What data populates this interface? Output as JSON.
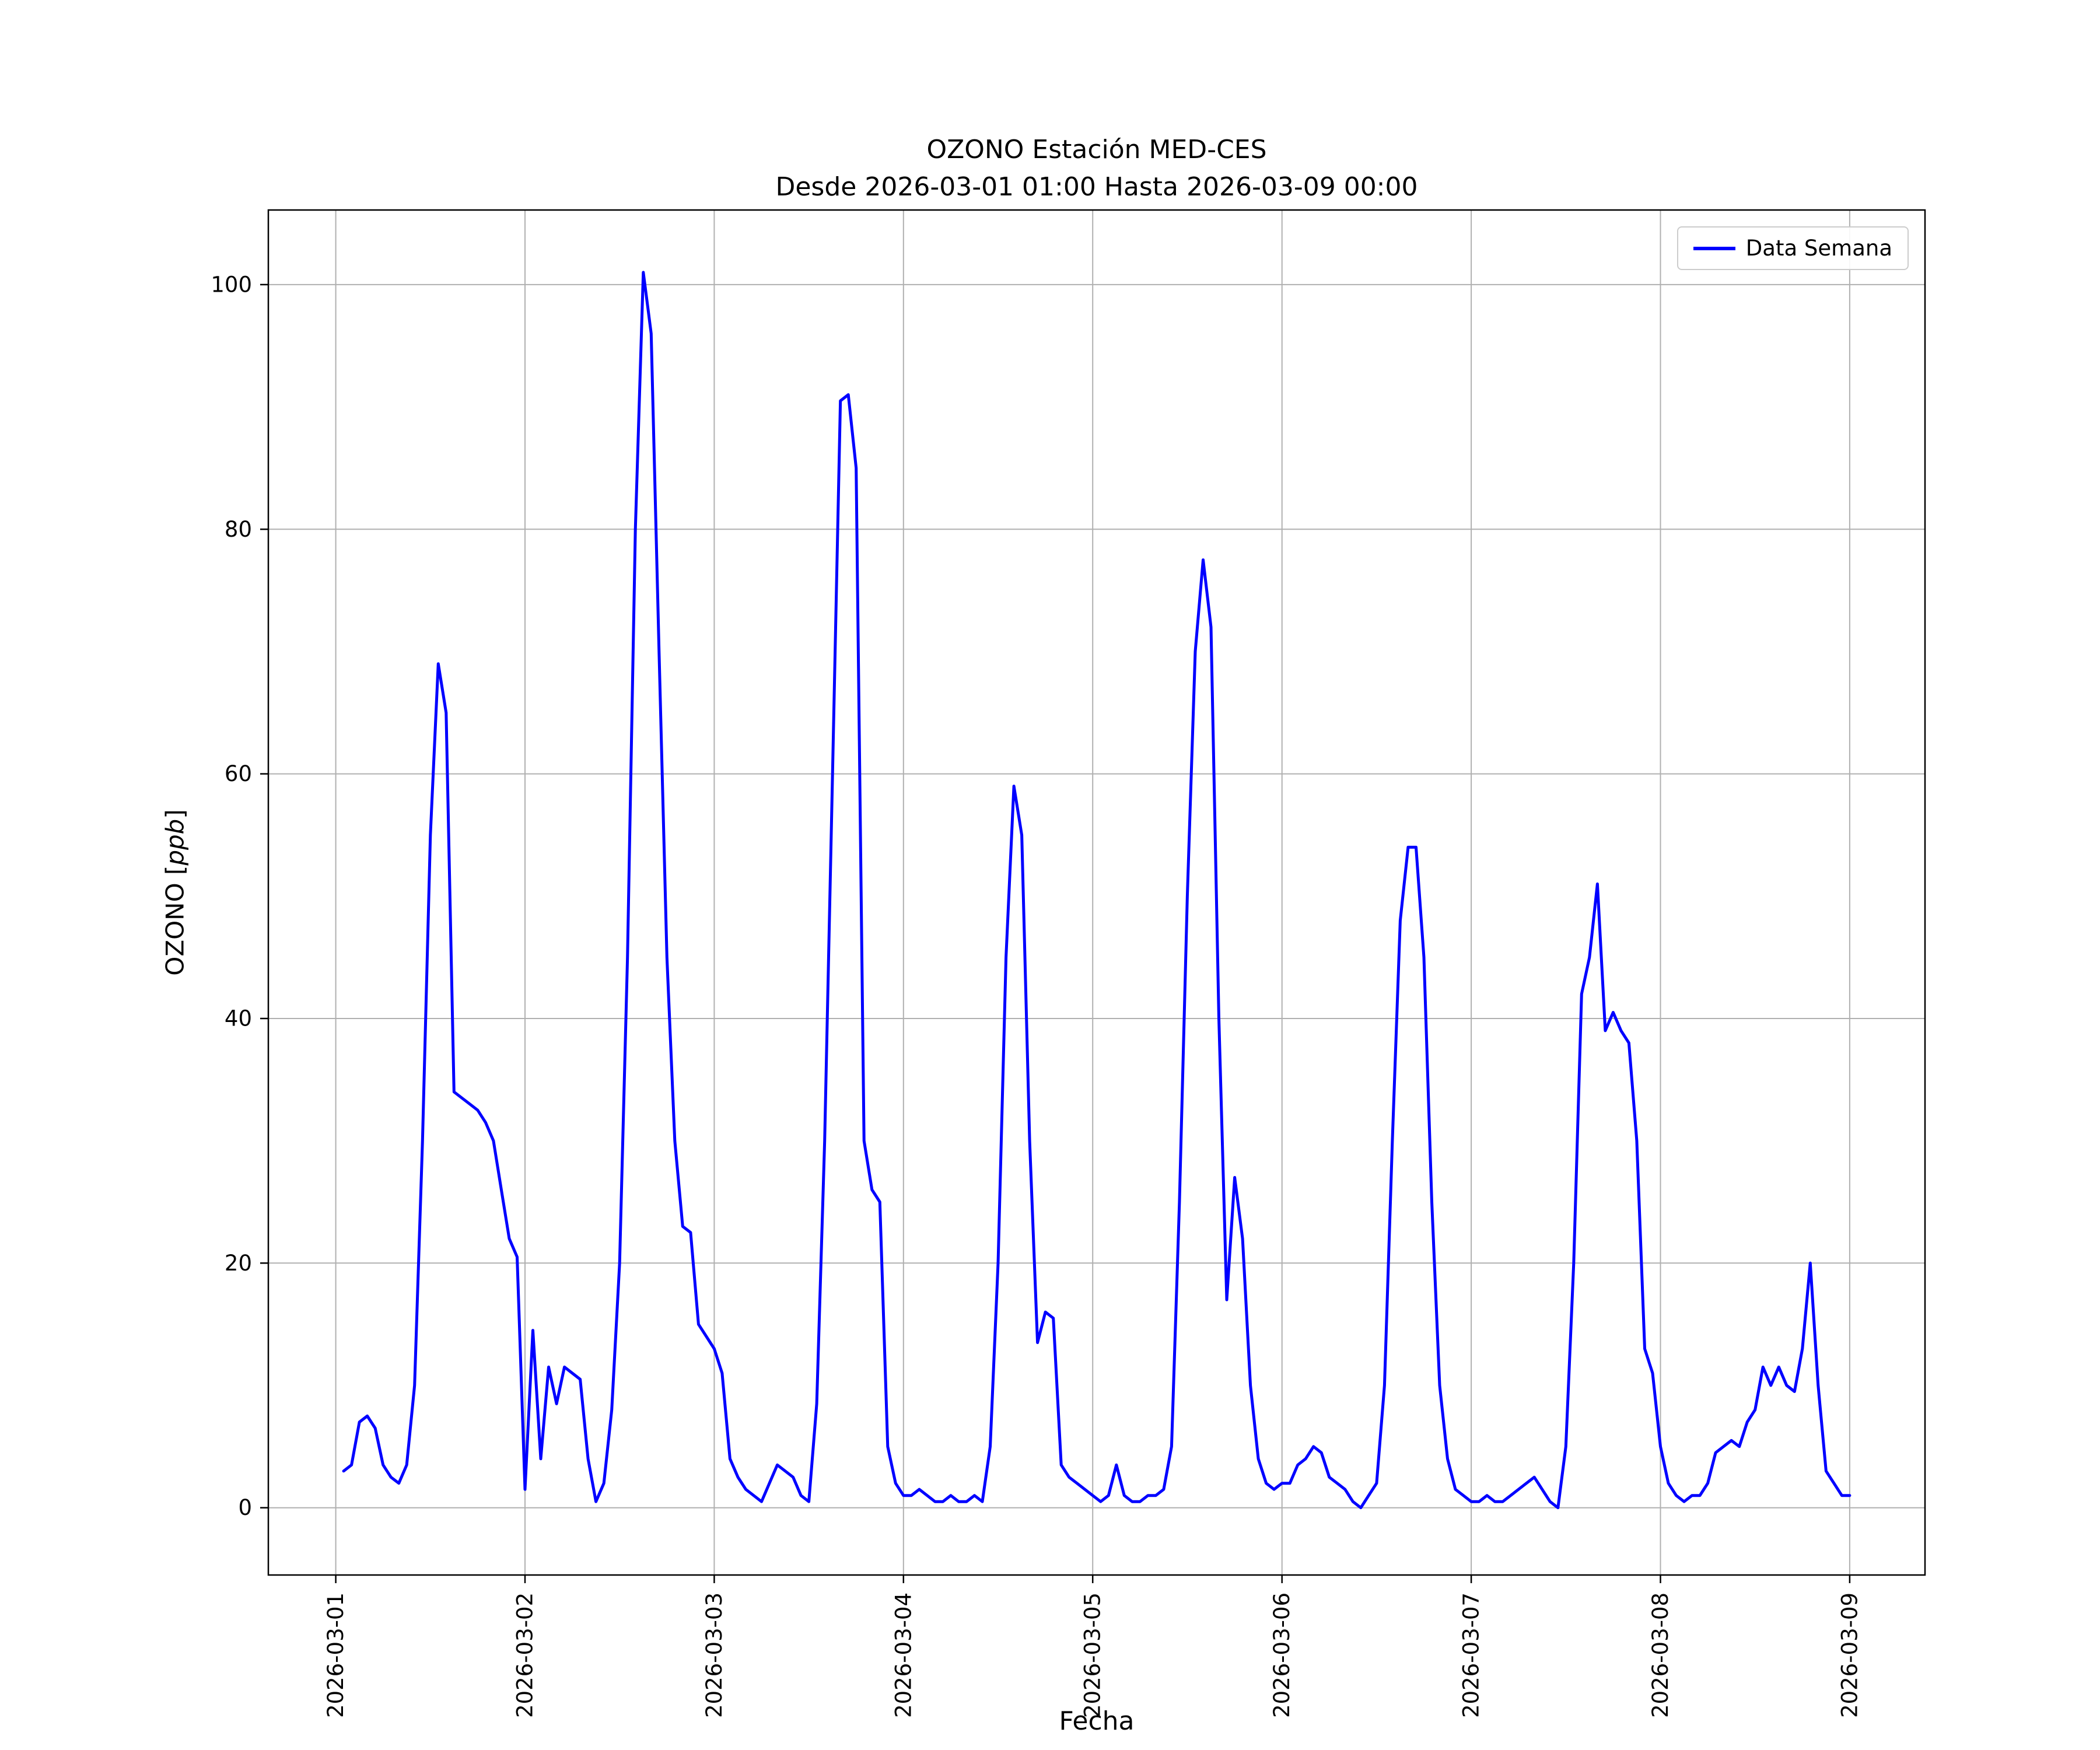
{
  "figure": {
    "title_line1": "OZONO Estación MED-CES",
    "title_line2": "Desde 2026-03-01 01:00 Hasta 2026-03-09 00:00",
    "xlabel": "Fecha",
    "ylabel_prefix": "OZONO [",
    "ylabel_italic": "ppb",
    "ylabel_suffix": "]"
  },
  "legend": {
    "position": "upper right",
    "entries": [
      {
        "label": "Data Semana",
        "color": "#0000FF"
      }
    ]
  },
  "chart_data": {
    "type": "line",
    "title": "OZONO Estación MED-CES",
    "subtitle": "Desde 2026-03-01 01:00 Hasta 2026-03-09 00:00",
    "xlabel": "Fecha",
    "ylabel": "OZONO [ppb]",
    "x_start": "2026-03-01 01:00",
    "x_end": "2026-03-09 00:00",
    "x_unit": "hours since 2026-03-01 01:00",
    "grid": true,
    "grid_color": "#b0b0b0",
    "background": "#ffffff",
    "xlim": [
      -9.55,
      200.55
    ],
    "ylim": [
      -5.5,
      106.1
    ],
    "y_ticks": [
      0,
      20,
      40,
      60,
      80,
      100
    ],
    "x_ticks": [
      {
        "t": -1,
        "label": "2026-03-01"
      },
      {
        "t": 23,
        "label": "2026-03-02"
      },
      {
        "t": 47,
        "label": "2026-03-03"
      },
      {
        "t": 71,
        "label": "2026-03-04"
      },
      {
        "t": 95,
        "label": "2026-03-05"
      },
      {
        "t": 119,
        "label": "2026-03-06"
      },
      {
        "t": 143,
        "label": "2026-03-07"
      },
      {
        "t": 167,
        "label": "2026-03-08"
      },
      {
        "t": 191,
        "label": "2026-03-09"
      }
    ],
    "series": [
      {
        "name": "Data Semana",
        "color": "#0000FF",
        "values": [
          3,
          3.5,
          7,
          7.5,
          6.5,
          3.5,
          2.5,
          2,
          3.5,
          10,
          30,
          55,
          69,
          65,
          34,
          33.5,
          33,
          32.5,
          31.5,
          30,
          26,
          22,
          20.5,
          1.5,
          14.5,
          4,
          11.5,
          8.5,
          11.5,
          11,
          10.5,
          4,
          0.5,
          2,
          8,
          20,
          45,
          80,
          101,
          96,
          70,
          45,
          30,
          23,
          22.5,
          15,
          14,
          13,
          11,
          4,
          2.5,
          1.5,
          1,
          0.5,
          2,
          3.5,
          3,
          2.5,
          1,
          0.5,
          8.5,
          30,
          60,
          90.5,
          91,
          85,
          30,
          26,
          25,
          5,
          2,
          1,
          1,
          1.5,
          1,
          0.5,
          0.5,
          1,
          0.5,
          0.5,
          1,
          0.5,
          5,
          20,
          45,
          59,
          55,
          30,
          13.5,
          16,
          15.5,
          3.5,
          2.5,
          2,
          1.5,
          1,
          0.5,
          1,
          3.5,
          1,
          0.5,
          0.5,
          1,
          1,
          1.5,
          5,
          25,
          50,
          70,
          77.5,
          72,
          40,
          17,
          27,
          22,
          10,
          4,
          2,
          1.5,
          2,
          2,
          3.5,
          4,
          5,
          4.5,
          2.5,
          2,
          1.5,
          0.5,
          0,
          1,
          2,
          10,
          30,
          48,
          54,
          54,
          45,
          25,
          10,
          4,
          1.5,
          1,
          0.5,
          0.5,
          1,
          0.5,
          0.5,
          1,
          1.5,
          2,
          2.5,
          1.5,
          0.5,
          0,
          5,
          20,
          42,
          45,
          51,
          39,
          40.5,
          39,
          38,
          30,
          13,
          11,
          5,
          2,
          1,
          0.5,
          1,
          1,
          2,
          4.5,
          5,
          5.5,
          5,
          7,
          8,
          11.5,
          10,
          11.5,
          10,
          9.5,
          13,
          20,
          10,
          3,
          2,
          1,
          1
        ]
      }
    ]
  }
}
